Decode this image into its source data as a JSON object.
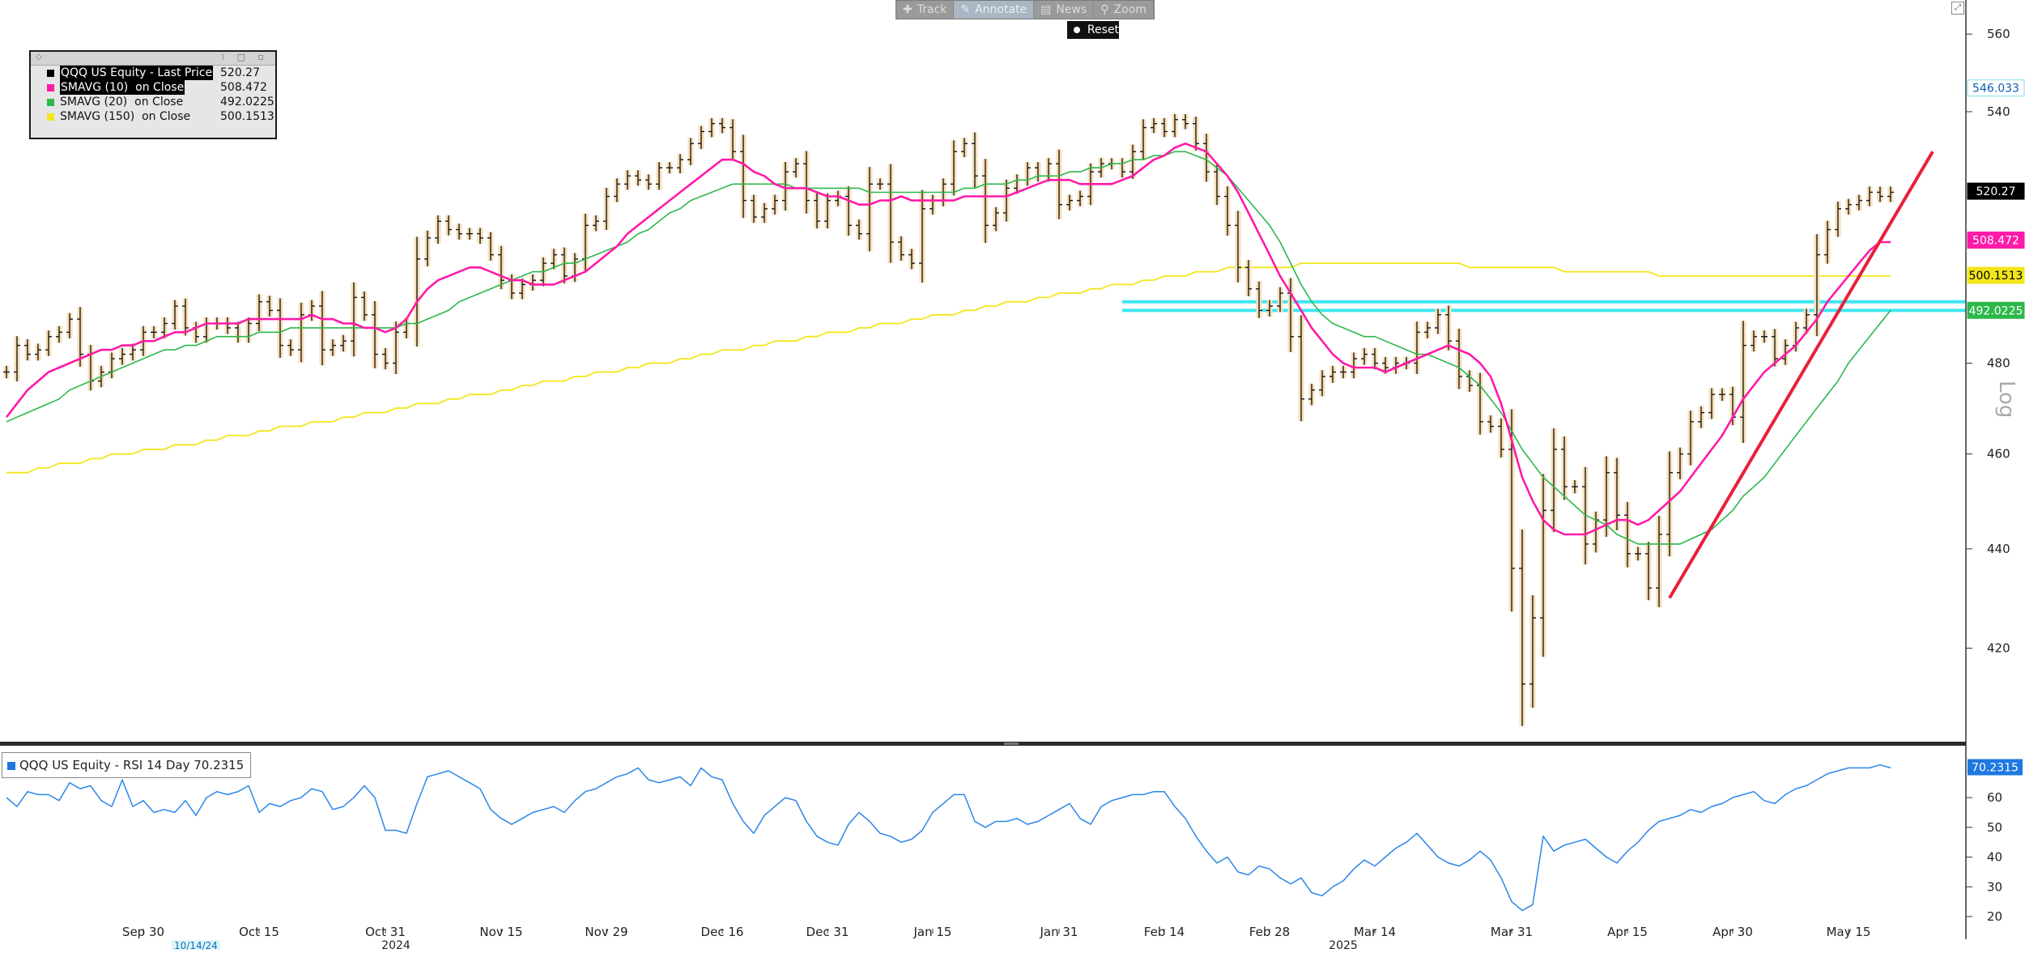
{
  "toolbar": {
    "buttons": [
      {
        "label": "Track",
        "icon": "crosshair-icon",
        "glyph": "✚",
        "active": false
      },
      {
        "label": "Annotate",
        "icon": "pencil-icon",
        "glyph": "✎",
        "active": true
      },
      {
        "label": "News",
        "icon": "news-icon",
        "glyph": "▤",
        "active": false
      },
      {
        "label": "Zoom",
        "icon": "magnifier-icon",
        "glyph": "⚲",
        "active": false
      }
    ],
    "reset_label": "Reset"
  },
  "legend": {
    "items": [
      {
        "label": "QQQ US Equity - Last Price",
        "value": "520.27",
        "color": "#000000",
        "highlight": true
      },
      {
        "label": "SMAVG (10)  on Close",
        "value": "508.472",
        "color": "#ff1aa8",
        "highlight": true
      },
      {
        "label": "SMAVG (20)  on Close",
        "value": "492.0225",
        "color": "#2db84a",
        "highlight": false
      },
      {
        "label": "SMAVG (150)  on Close",
        "value": "500.1513",
        "color": "#f2e61a",
        "highlight": false
      }
    ]
  },
  "rsi_legend": {
    "label": "QQQ US Equity - RSI 14 Day 70.2315",
    "color": "#1e78e0"
  },
  "colors": {
    "bar_fill": "#f8dfb8",
    "bar_stroke": "#1a1a1a",
    "sma10": "#ff1aa8",
    "sma20": "#2db84a",
    "sma150": "#f2e61a",
    "rsi": "#2b86e8",
    "trendline": "#e8203a",
    "hline": "#3fe6f0"
  },
  "chart_data": [
    {
      "type": "ohlc",
      "scale": "log",
      "scale_label": "Log",
      "ylim": [
        402,
        566
      ],
      "yticks": [
        420,
        440,
        460,
        480,
        540,
        560
      ],
      "x_labels": [
        {
          "i": 13,
          "label": "Sep 30"
        },
        {
          "i": 24,
          "label": "Oct 15"
        },
        {
          "i": 36,
          "label": "Oct 31"
        },
        {
          "i": 47,
          "label": "Nov 15"
        },
        {
          "i": 57,
          "label": "Nov 29"
        },
        {
          "i": 68,
          "label": "Dec 16"
        },
        {
          "i": 78,
          "label": "Dec 31"
        },
        {
          "i": 88,
          "label": "Jan 15"
        },
        {
          "i": 100,
          "label": "Jan 31"
        },
        {
          "i": 110,
          "label": "Feb 14"
        },
        {
          "i": 120,
          "label": "Feb 28"
        },
        {
          "i": 130,
          "label": "Mar 14"
        },
        {
          "i": 143,
          "label": "Mar 31"
        },
        {
          "i": 154,
          "label": "Apr 15"
        },
        {
          "i": 164,
          "label": "Apr 30"
        },
        {
          "i": 175,
          "label": "May 15"
        }
      ],
      "year_labels": [
        {
          "i": 37,
          "label": "2024"
        },
        {
          "i": 127,
          "label": "2025"
        }
      ],
      "marker_label": {
        "i": 18,
        "label": "10/14/24"
      },
      "price_tags": [
        {
          "value": "546.033",
          "y": 546.033,
          "bg": "#ffffff",
          "fg": "#0b5fb0",
          "border": "#7fe0e8"
        },
        {
          "value": "520.27",
          "y": 520.27,
          "bg": "#000000",
          "fg": "#ffffff",
          "border": "#000000"
        },
        {
          "value": "508.472",
          "y": 508.472,
          "bg": "#ff1aa8",
          "fg": "#ffffff",
          "border": "#ff1aa8"
        },
        {
          "value": "500.1513",
          "y": 500.1513,
          "bg": "#f2e61a",
          "fg": "#000000",
          "border": "#f2e61a"
        },
        {
          "value": "492.0225",
          "y": 492.0225,
          "bg": "#2db84a",
          "fg": "#ffffff",
          "border": "#2db84a"
        }
      ],
      "closes": [
        478,
        484,
        482,
        483,
        486,
        487,
        490,
        482,
        476,
        478,
        481,
        482,
        483,
        487,
        487,
        489,
        493,
        488,
        486,
        489,
        489,
        488,
        486,
        489,
        494,
        492,
        484,
        483,
        491,
        493,
        483,
        484,
        485,
        495,
        491,
        482,
        480,
        487,
        489,
        504,
        509,
        513,
        511,
        510,
        510,
        509,
        505,
        499,
        496,
        498,
        499,
        503,
        505,
        500,
        504,
        512,
        513,
        519,
        522,
        524,
        523,
        522,
        526,
        526,
        528,
        532,
        535,
        537,
        536,
        530,
        518,
        514,
        516,
        518,
        525,
        527,
        518,
        513,
        518,
        519,
        512,
        510,
        522,
        522,
        508,
        505,
        503,
        516,
        518,
        522,
        530,
        532,
        524,
        512,
        515,
        521,
        523,
        526,
        524,
        527,
        517,
        518,
        519,
        525,
        527,
        527,
        525,
        530,
        536,
        537,
        535,
        538,
        537,
        532,
        525,
        519,
        512,
        502,
        497,
        492,
        493,
        496,
        486,
        472,
        474,
        477,
        478,
        478,
        481,
        482,
        480,
        479,
        480,
        480,
        487,
        488,
        491,
        485,
        477,
        475,
        467,
        466,
        461,
        436,
        413,
        426,
        448,
        461,
        453,
        453,
        441,
        446,
        456,
        447,
        439,
        439,
        432,
        443,
        456,
        460,
        467,
        469,
        473,
        473,
        468,
        484,
        486,
        486,
        481,
        484,
        488,
        491,
        505,
        511,
        516,
        517,
        518,
        520,
        519,
        520
      ],
      "sma10": [
        468,
        471,
        474,
        476,
        478,
        479,
        480,
        481,
        482,
        483,
        483,
        484,
        484,
        485,
        485,
        486,
        487,
        487,
        488,
        489,
        489,
        489,
        489,
        490,
        490,
        490,
        490,
        490,
        490,
        491,
        490,
        490,
        489,
        489,
        488,
        488,
        487,
        488,
        490,
        494,
        497,
        499,
        500,
        501,
        502,
        502,
        501,
        500,
        499,
        499,
        498,
        498,
        498,
        499,
        500,
        501,
        503,
        505,
        507,
        510,
        512,
        514,
        516,
        518,
        520,
        522,
        524,
        526,
        528,
        528,
        527,
        525,
        524,
        522,
        521,
        521,
        521,
        520,
        519,
        519,
        518,
        517,
        517,
        518,
        518,
        519,
        518,
        518,
        518,
        518,
        518,
        519,
        519,
        519,
        519,
        519,
        520,
        521,
        522,
        523,
        523,
        523,
        522,
        522,
        522,
        522,
        523,
        524,
        526,
        528,
        529,
        531,
        532,
        531,
        530,
        527,
        524,
        520,
        515,
        510,
        505,
        500,
        496,
        492,
        488,
        485,
        482,
        480,
        479,
        479,
        479,
        478,
        479,
        480,
        481,
        482,
        483,
        484,
        483,
        482,
        480,
        477,
        471,
        463,
        455,
        450,
        446,
        444,
        443,
        443,
        443,
        444,
        445,
        446,
        446,
        445,
        446,
        448,
        450,
        452,
        455,
        458,
        461,
        464,
        468,
        472,
        475,
        478,
        480,
        482,
        484,
        487,
        490,
        494,
        497,
        500,
        503,
        506,
        508,
        508
      ],
      "sma20": [
        467,
        468,
        469,
        470,
        471,
        472,
        474,
        475,
        476,
        477,
        478,
        479,
        480,
        481,
        482,
        483,
        483,
        484,
        484,
        485,
        486,
        486,
        486,
        486,
        487,
        487,
        487,
        488,
        488,
        488,
        488,
        488,
        488,
        488,
        488,
        488,
        488,
        488,
        489,
        489,
        490,
        491,
        492,
        494,
        495,
        496,
        497,
        498,
        499,
        500,
        501,
        501,
        502,
        503,
        503,
        504,
        505,
        506,
        507,
        508,
        510,
        511,
        513,
        515,
        516,
        518,
        519,
        520,
        521,
        522,
        522,
        522,
        522,
        522,
        522,
        521,
        521,
        521,
        521,
        521,
        521,
        521,
        520,
        520,
        520,
        520,
        520,
        520,
        520,
        520,
        520,
        521,
        521,
        522,
        522,
        522,
        523,
        523,
        524,
        524,
        524,
        525,
        525,
        526,
        526,
        527,
        527,
        528,
        528,
        529,
        529,
        530,
        530,
        529,
        528,
        526,
        524,
        521,
        518,
        515,
        512,
        508,
        503,
        498,
        494,
        491,
        489,
        488,
        487,
        486,
        486,
        485,
        484,
        483,
        482,
        482,
        481,
        480,
        479,
        477,
        475,
        472,
        469,
        465,
        461,
        458,
        455,
        453,
        451,
        449,
        447,
        446,
        445,
        443,
        442,
        441,
        441,
        441,
        441,
        441,
        442,
        443,
        444,
        446,
        448,
        451,
        453,
        455,
        458,
        461,
        464,
        467,
        470,
        473,
        476,
        480,
        483,
        486,
        489,
        492
      ],
      "sma150": [
        456,
        456,
        456,
        457,
        457,
        458,
        458,
        458,
        459,
        459,
        460,
        460,
        460,
        461,
        461,
        461,
        462,
        462,
        462,
        463,
        463,
        464,
        464,
        464,
        465,
        465,
        466,
        466,
        466,
        467,
        467,
        467,
        468,
        468,
        469,
        469,
        469,
        470,
        470,
        471,
        471,
        471,
        472,
        472,
        473,
        473,
        473,
        474,
        474,
        475,
        475,
        476,
        476,
        476,
        477,
        477,
        478,
        478,
        478,
        479,
        479,
        480,
        480,
        480,
        481,
        481,
        482,
        482,
        483,
        483,
        483,
        484,
        484,
        485,
        485,
        485,
        486,
        486,
        487,
        487,
        487,
        488,
        488,
        489,
        489,
        489,
        490,
        490,
        491,
        491,
        491,
        492,
        492,
        493,
        493,
        494,
        494,
        494,
        495,
        495,
        496,
        496,
        496,
        497,
        497,
        498,
        498,
        498,
        499,
        499,
        500,
        500,
        500,
        501,
        501,
        501,
        502,
        502,
        502,
        502,
        502,
        502,
        502,
        503,
        503,
        503,
        503,
        503,
        503,
        503,
        503,
        503,
        503,
        503,
        503,
        503,
        503,
        503,
        503,
        502,
        502,
        502,
        502,
        502,
        502,
        502,
        502,
        502,
        501,
        501,
        501,
        501,
        501,
        501,
        501,
        501,
        501,
        500,
        500,
        500,
        500,
        500,
        500,
        500,
        500,
        500,
        500,
        500,
        500,
        500,
        500,
        500,
        500,
        500,
        500,
        500,
        500,
        500,
        500,
        500
      ],
      "trendline": [
        {
          "i": 158,
          "y": 430
        },
        {
          "i": 183,
          "y": 530
        }
      ],
      "horizontal_lines": [
        494,
        492
      ]
    },
    {
      "type": "line",
      "name": "RSI 14 Day",
      "ylim": [
        17,
        75
      ],
      "yticks": [
        20,
        30,
        40,
        50,
        60
      ],
      "last_value": "70.2315",
      "values": [
        60,
        57,
        62,
        61,
        61,
        59,
        65,
        63,
        64,
        59,
        57,
        66,
        57,
        59,
        55,
        56,
        55,
        59,
        54,
        60,
        62,
        61,
        62,
        64,
        55,
        58,
        57,
        59,
        60,
        63,
        62,
        56,
        57,
        60,
        64,
        60,
        49,
        49,
        48,
        58,
        67,
        68,
        69,
        67,
        65,
        63,
        56,
        53,
        51,
        53,
        55,
        56,
        57,
        55,
        59,
        62,
        63,
        65,
        67,
        68,
        70,
        66,
        65,
        66,
        67,
        64,
        70,
        67,
        66,
        58,
        52,
        48,
        54,
        57,
        60,
        59,
        52,
        47,
        45,
        44,
        51,
        55,
        52,
        48,
        47,
        45,
        46,
        49,
        55,
        58,
        61,
        61,
        52,
        50,
        52,
        52,
        53,
        51,
        52,
        54,
        56,
        58,
        53,
        51,
        57,
        59,
        60,
        61,
        61,
        62,
        62,
        57,
        53,
        47,
        42,
        38,
        40,
        35,
        34,
        37,
        36,
        33,
        31,
        33,
        28,
        27,
        30,
        32,
        36,
        39,
        37,
        40,
        43,
        45,
        48,
        44,
        40,
        38,
        37,
        39,
        42,
        39,
        33,
        25,
        22,
        24,
        47,
        42,
        44,
        45,
        46,
        43,
        40,
        38,
        42,
        45,
        49,
        52,
        53,
        54,
        56,
        55,
        57,
        58,
        60,
        61,
        62,
        59,
        58,
        61,
        63,
        64,
        66,
        68,
        69,
        70,
        70,
        70,
        71,
        70
      ]
    }
  ]
}
